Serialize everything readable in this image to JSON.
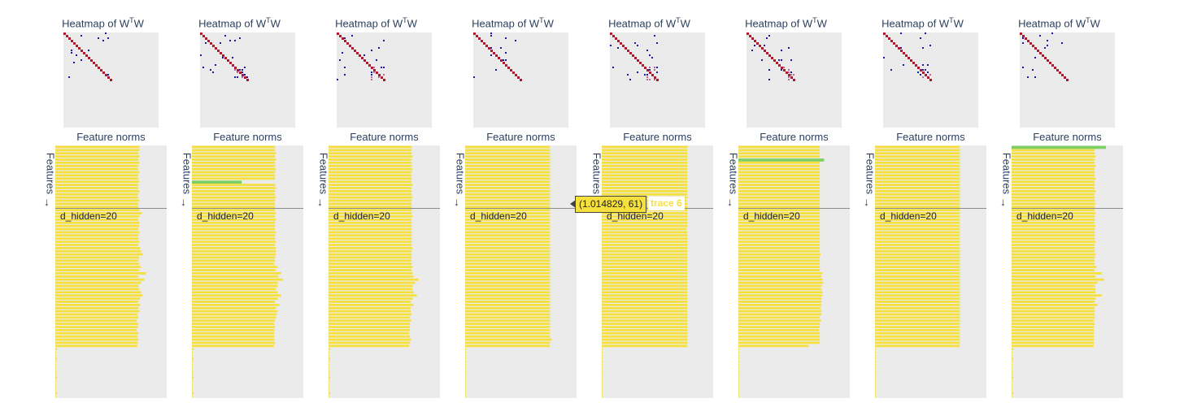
{
  "heatmap_title_prefix": "Heatmap of W",
  "heatmap_title_sup": "T",
  "heatmap_title_suffix": "W",
  "norms_title": "Feature norms",
  "ylabel": "Features",
  "annotation": "d_hidden=20",
  "tooltip": {
    "text": "(1.014829, 61)",
    "trace": "trace 6"
  },
  "colors": {
    "bar": "#f6e03b",
    "bar_highlight": "#7ecf62",
    "diag": "#b2182b",
    "offdiag": "#1a1aa6",
    "bg": "#ebebeb"
  },
  "chart_data": [
    {
      "type": "bar",
      "title": "Feature norms",
      "ylabel": "Features",
      "xlim": [
        0,
        1.3
      ],
      "n_features": 80,
      "highlight": [],
      "values": [
        0.98,
        0.98,
        0.97,
        0.98,
        0.97,
        0.98,
        0.97,
        0.97,
        0.98,
        0.97,
        0.97,
        0.98,
        0.97,
        0.97,
        0.98,
        0.97,
        0.97,
        0.98,
        0.97,
        0.97,
        0.98,
        1.01,
        0.98,
        0.97,
        0.98,
        0.98,
        0.97,
        0.98,
        0.97,
        0.97,
        0.98,
        0.97,
        0.99,
        1.0,
        1.02,
        0.98,
        0.97,
        0.98,
        1.0,
        0.98,
        1.06,
        0.97,
        1.04,
        1.0,
        0.97,
        0.98,
        1.0,
        1.02,
        0.99,
        0.97,
        0.99,
        0.97,
        0.98,
        0.96,
        0.97,
        0.95,
        0.97,
        0.96,
        0.95,
        0.97,
        0.96,
        0.97,
        0.96,
        0.96,
        0.02,
        0.01,
        0.01,
        0.02,
        0.01,
        0.01,
        0.01,
        0.01,
        0.01,
        0.02,
        0.01,
        0.01,
        0.01,
        0.01,
        0.02,
        0.01
      ]
    },
    {
      "type": "bar",
      "title": "Feature norms",
      "ylabel": "Features",
      "xlim": [
        0,
        1.3
      ],
      "n_features": 80,
      "highlight": [
        11
      ],
      "values": [
        0.97,
        0.97,
        0.98,
        0.97,
        0.98,
        0.97,
        0.97,
        0.98,
        0.97,
        0.97,
        0.97,
        0.58,
        0.97,
        0.98,
        0.97,
        0.97,
        0.98,
        0.97,
        0.97,
        0.97,
        0.97,
        0.98,
        0.97,
        0.98,
        0.97,
        0.97,
        0.97,
        0.98,
        0.97,
        0.97,
        0.98,
        0.97,
        0.98,
        0.98,
        0.98,
        0.97,
        0.97,
        0.96,
        1.0,
        0.98,
        1.04,
        1.01,
        1.06,
        1.0,
        1.0,
        0.98,
        1.0,
        1.04,
        1.0,
        0.97,
        1.02,
        0.98,
        1.0,
        0.99,
        0.98,
        0.97,
        0.96,
        0.97,
        0.96,
        0.96,
        0.96,
        0.96,
        0.97,
        0.96,
        0.02,
        0.01,
        0.01,
        0.02,
        0.01,
        0.01,
        0.01,
        0.01,
        0.01,
        0.02,
        0.01,
        0.01,
        0.01,
        0.01,
        0.02,
        0.01
      ]
    },
    {
      "type": "bar",
      "title": "Feature norms",
      "ylabel": "Features",
      "xlim": [
        0,
        1.3
      ],
      "n_features": 80,
      "highlight": [],
      "values": [
        0.97,
        0.97,
        0.97,
        0.98,
        0.97,
        0.97,
        0.97,
        0.98,
        0.97,
        0.97,
        0.97,
        0.97,
        0.98,
        0.97,
        0.97,
        0.97,
        0.98,
        0.97,
        0.97,
        0.97,
        0.97,
        0.97,
        0.98,
        0.97,
        0.97,
        0.97,
        0.97,
        0.97,
        0.97,
        0.97,
        0.97,
        0.97,
        0.98,
        0.97,
        0.97,
        0.97,
        0.97,
        0.97,
        0.98,
        0.97,
        0.98,
        0.99,
        1.05,
        1.01,
        0.98,
        0.98,
        0.99,
        1.03,
        0.98,
        0.96,
        0.99,
        0.96,
        0.96,
        0.97,
        0.95,
        0.96,
        0.95,
        0.95,
        0.95,
        0.94,
        0.95,
        0.96,
        0.95,
        0.94,
        0.02,
        0.01,
        0.01,
        0.02,
        0.01,
        0.01,
        0.01,
        0.01,
        0.01,
        0.02,
        0.01,
        0.01,
        0.01,
        0.01,
        0.02,
        0.01
      ]
    },
    {
      "type": "bar",
      "title": "Feature norms",
      "ylabel": "Features",
      "xlim": [
        0,
        1.3
      ],
      "n_features": 80,
      "highlight": [],
      "values": [
        0.99,
        0.99,
        0.99,
        0.99,
        0.99,
        0.99,
        0.99,
        0.99,
        0.99,
        0.99,
        0.99,
        0.99,
        0.99,
        0.99,
        0.99,
        0.99,
        0.99,
        0.99,
        0.99,
        0.99,
        0.99,
        0.99,
        0.99,
        0.99,
        0.99,
        0.99,
        0.99,
        0.99,
        0.99,
        0.99,
        0.99,
        0.99,
        0.99,
        0.99,
        0.99,
        0.99,
        0.99,
        0.99,
        0.99,
        0.99,
        0.99,
        0.99,
        0.99,
        0.99,
        0.99,
        0.99,
        0.99,
        0.99,
        0.99,
        0.99,
        0.99,
        0.99,
        0.99,
        0.99,
        0.99,
        0.99,
        0.99,
        0.99,
        0.99,
        0.99,
        0.99,
        1.01,
        0.99,
        0.99,
        0.01,
        0.01,
        0.01,
        0.01,
        0.01,
        0.01,
        0.01,
        0.01,
        0.01,
        0.01,
        0.01,
        0.01,
        0.01,
        0.01,
        0.01,
        0.01
      ]
    },
    {
      "type": "bar",
      "title": "Feature norms",
      "ylabel": "Features",
      "xlim": [
        0,
        1.3
      ],
      "n_features": 80,
      "highlight": [],
      "values": [
        1.0,
        1.0,
        1.0,
        1.0,
        1.0,
        1.0,
        1.0,
        1.0,
        1.0,
        1.0,
        1.0,
        1.0,
        1.0,
        1.0,
        1.0,
        1.0,
        1.0,
        0.99,
        1.0,
        1.0,
        1.0,
        1.0,
        1.0,
        1.0,
        1.0,
        1.0,
        0.99,
        1.0,
        1.0,
        1.0,
        1.0,
        1.0,
        1.0,
        1.0,
        1.0,
        1.0,
        1.0,
        1.0,
        1.0,
        1.0,
        1.0,
        1.0,
        1.0,
        1.0,
        1.0,
        1.0,
        1.0,
        1.0,
        1.0,
        1.0,
        1.0,
        1.0,
        1.0,
        1.0,
        1.0,
        1.0,
        1.0,
        1.0,
        1.0,
        1.0,
        1.0,
        1.0,
        1.0,
        1.0,
        0.01,
        0.01,
        0.01,
        0.01,
        0.01,
        0.01,
        0.01,
        0.01,
        0.01,
        0.01,
        0.01,
        0.01,
        0.01,
        0.01,
        0.01,
        0.01
      ]
    },
    {
      "type": "bar",
      "title": "Feature norms",
      "ylabel": "Features",
      "xlim": [
        0,
        1.3
      ],
      "n_features": 80,
      "highlight": [
        4
      ],
      "values": [
        0.95,
        0.95,
        0.95,
        0.95,
        1.0,
        0.95,
        0.95,
        0.95,
        0.95,
        0.95,
        0.95,
        0.95,
        0.95,
        0.95,
        0.95,
        0.95,
        0.95,
        0.95,
        0.95,
        0.95,
        0.95,
        0.95,
        0.95,
        0.95,
        0.95,
        0.95,
        0.95,
        0.95,
        0.95,
        0.95,
        0.95,
        0.95,
        0.95,
        0.95,
        0.96,
        0.95,
        0.95,
        0.95,
        0.95,
        0.95,
        0.98,
        0.97,
        0.98,
        0.99,
        0.97,
        0.97,
        0.98,
        0.98,
        0.97,
        0.97,
        0.97,
        0.96,
        0.97,
        0.97,
        0.95,
        0.96,
        0.95,
        0.95,
        0.94,
        0.95,
        0.95,
        0.95,
        0.95,
        0.82,
        0.01,
        0.01,
        0.01,
        0.01,
        0.01,
        0.01,
        0.01,
        0.01,
        0.01,
        0.01,
        0.01,
        0.01,
        0.01,
        0.01,
        0.01,
        0.01
      ]
    },
    {
      "type": "bar",
      "title": "Feature norms",
      "ylabel": "Features",
      "xlim": [
        0,
        1.3
      ],
      "n_features": 80,
      "highlight": [],
      "values": [
        0.99,
        0.99,
        0.99,
        0.99,
        0.99,
        0.99,
        0.99,
        0.99,
        0.99,
        0.99,
        0.99,
        0.99,
        0.99,
        0.99,
        0.99,
        0.99,
        0.99,
        0.99,
        0.99,
        0.99,
        0.99,
        0.99,
        0.99,
        0.99,
        0.99,
        0.99,
        0.99,
        0.99,
        0.99,
        0.99,
        0.99,
        0.99,
        0.99,
        0.99,
        0.99,
        0.99,
        0.99,
        0.99,
        0.99,
        0.99,
        0.99,
        0.99,
        0.99,
        0.99,
        0.99,
        0.99,
        0.99,
        0.99,
        0.99,
        0.99,
        0.99,
        0.99,
        0.99,
        0.99,
        0.99,
        0.99,
        0.99,
        0.99,
        0.99,
        0.99,
        0.99,
        0.99,
        0.99,
        0.99,
        0.01,
        0.01,
        0.01,
        0.01,
        0.01,
        0.01,
        0.01,
        0.01,
        0.01,
        0.01,
        0.01,
        0.01,
        0.01,
        0.01,
        0.01,
        0.01
      ]
    },
    {
      "type": "bar",
      "title": "Feature norms",
      "ylabel": "Features",
      "xlim": [
        0,
        1.3
      ],
      "n_features": 80,
      "highlight": [
        0
      ],
      "values": [
        1.1,
        0.97,
        0.97,
        0.98,
        0.97,
        0.97,
        0.98,
        0.97,
        0.97,
        0.97,
        0.98,
        0.97,
        0.97,
        0.97,
        0.98,
        0.97,
        0.97,
        0.97,
        0.98,
        0.97,
        0.97,
        0.98,
        0.97,
        0.97,
        0.97,
        0.98,
        0.97,
        0.97,
        0.97,
        0.97,
        0.98,
        0.97,
        0.97,
        0.97,
        0.98,
        0.97,
        0.97,
        0.97,
        0.99,
        0.97,
        1.05,
        0.98,
        1.08,
        1.0,
        0.97,
        0.98,
        0.98,
        1.05,
        0.98,
        0.97,
        1.0,
        0.97,
        0.97,
        0.97,
        0.97,
        0.96,
        0.97,
        0.96,
        0.96,
        0.96,
        0.96,
        0.96,
        0.96,
        0.96,
        0.02,
        0.01,
        0.01,
        0.02,
        0.01,
        0.01,
        0.01,
        0.01,
        0.01,
        0.02,
        0.01,
        0.01,
        0.01,
        0.01,
        0.02,
        0.01
      ]
    }
  ]
}
